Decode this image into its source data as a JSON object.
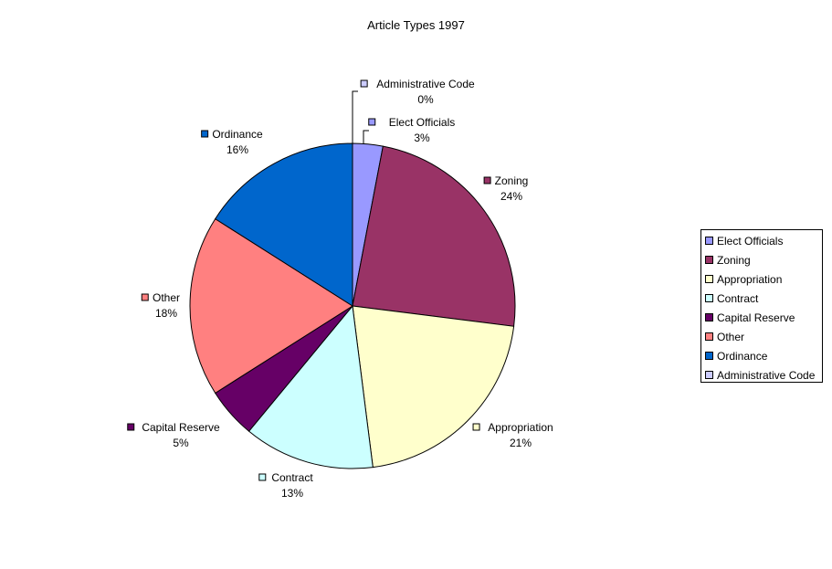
{
  "chart_data": {
    "type": "pie",
    "title": "Article Types 1997",
    "slices": [
      {
        "label": "Elect Officials",
        "value": 3,
        "value_label": "3%",
        "color": "#9999ff"
      },
      {
        "label": "Zoning",
        "value": 24,
        "value_label": "24%",
        "color": "#993366"
      },
      {
        "label": "Appropriation",
        "value": 21,
        "value_label": "21%",
        "color": "#ffffcc"
      },
      {
        "label": "Contract",
        "value": 13,
        "value_label": "13%",
        "color": "#ccffff"
      },
      {
        "label": "Capital Reserve",
        "value": 5,
        "value_label": "5%",
        "color": "#660066"
      },
      {
        "label": "Other",
        "value": 18,
        "value_label": "18%",
        "color": "#ff8080"
      },
      {
        "label": "Ordinance",
        "value": 16,
        "value_label": "16%",
        "color": "#0066cc"
      },
      {
        "label": "Administrative Code",
        "value": 0,
        "value_label": "0%",
        "color": "#ccccff"
      }
    ],
    "legend_position": "right"
  }
}
